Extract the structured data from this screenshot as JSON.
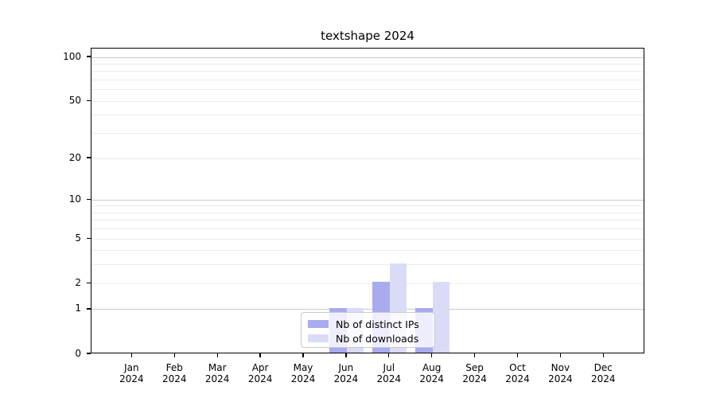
{
  "chart_data": {
    "type": "bar",
    "title": "textshape 2024",
    "year": "2024",
    "categories": [
      "Jan",
      "Feb",
      "Mar",
      "Apr",
      "May",
      "Jun",
      "Jul",
      "Aug",
      "Sep",
      "Oct",
      "Nov",
      "Dec"
    ],
    "series": [
      {
        "name": "Nb of distinct IPs",
        "color": "#a9abee",
        "values": [
          0,
          0,
          0,
          0,
          0,
          1,
          2,
          1,
          0,
          0,
          0,
          0
        ]
      },
      {
        "name": "Nb of downloads",
        "color": "#dadcf7",
        "values": [
          0,
          0,
          0,
          0,
          0,
          1,
          3,
          2,
          0,
          0,
          0,
          0
        ]
      }
    ],
    "y_axis": {
      "scale": "log1p",
      "tick_values": [
        0,
        1,
        2,
        5,
        10,
        20,
        50,
        100
      ],
      "major_grid_values": [
        1,
        10,
        100
      ],
      "minor_grid_values": [
        2,
        3,
        4,
        5,
        6,
        7,
        8,
        9,
        20,
        30,
        40,
        50,
        60,
        70,
        80,
        90
      ],
      "ylim": [
        0,
        115
      ]
    },
    "grid": {
      "major_color": "#c9c9c9",
      "minor_color": "#ebebeb"
    },
    "legend": {
      "position": "lower center"
    }
  }
}
